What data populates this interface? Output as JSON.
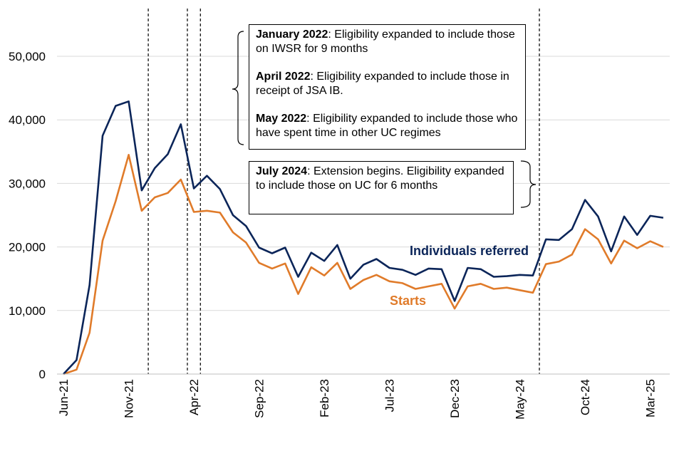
{
  "chart_data": {
    "type": "line",
    "y_ticks": [
      "0",
      "10,000",
      "20,000",
      "30,000",
      "40,000",
      "50,000"
    ],
    "ylim": [
      0,
      55000
    ],
    "x_tick_labels": [
      "Jun-21",
      "Nov-21",
      "Apr-22",
      "Sep-22",
      "Feb-23",
      "Jul-23",
      "Dec-23",
      "May-24",
      "Oct-24",
      "Mar-25"
    ],
    "x": [
      "Jun-21",
      "Jul-21",
      "Aug-21",
      "Sep-21",
      "Oct-21",
      "Nov-21",
      "Dec-21",
      "Jan-22",
      "Feb-22",
      "Mar-22",
      "Apr-22",
      "May-22",
      "Jun-22",
      "Jul-22",
      "Aug-22",
      "Sep-22",
      "Oct-22",
      "Nov-22",
      "Dec-22",
      "Jan-23",
      "Feb-23",
      "Mar-23",
      "Apr-23",
      "May-23",
      "Jun-23",
      "Jul-23",
      "Aug-23",
      "Sep-23",
      "Oct-23",
      "Nov-23",
      "Dec-23",
      "Jan-24",
      "Feb-24",
      "Mar-24",
      "Apr-24",
      "May-24",
      "Jun-24",
      "Jul-24",
      "Aug-24",
      "Sep-24",
      "Oct-24",
      "Nov-24",
      "Dec-24",
      "Jan-25",
      "Feb-25",
      "Mar-25",
      "Apr-25"
    ],
    "series": [
      {
        "name": "Individuals referred",
        "color": "#0b2559",
        "values": [
          0,
          2200,
          14000,
          37500,
          42200,
          42900,
          28900,
          32400,
          34600,
          39300,
          29200,
          31200,
          29100,
          25000,
          23300,
          19900,
          19000,
          19900,
          15300,
          19100,
          17800,
          20300,
          15000,
          17200,
          18100,
          16700,
          16400,
          15600,
          16600,
          16500,
          11500,
          16700,
          16500,
          15300,
          15400,
          15600,
          15500,
          21200,
          21100,
          22800,
          27400,
          24800,
          19300,
          24800,
          21900,
          24900,
          24600
        ]
      },
      {
        "name": "Starts",
        "color": "#e07b2a",
        "values": [
          0,
          700,
          6500,
          21000,
          27200,
          34500,
          25700,
          27800,
          28500,
          30600,
          25500,
          25700,
          25400,
          22300,
          20700,
          17500,
          16600,
          17400,
          12600,
          16800,
          15500,
          17500,
          13400,
          14800,
          15600,
          14600,
          14300,
          13400,
          13800,
          14200,
          10300,
          13800,
          14200,
          13400,
          13600,
          13200,
          12800,
          17300,
          17700,
          18800,
          22800,
          21200,
          17400,
          21000,
          19800,
          20900,
          20000
        ]
      }
    ],
    "event_lines": [
      "Jan-22",
      "Apr-22",
      "May-22",
      "Jul-24"
    ],
    "grid": true,
    "legend": "inline labels"
  },
  "annotations": {
    "box1": {
      "jan_bold": "January 2022",
      "jan_text": ": Eligibility expanded to include those on IWSR for 9 months",
      "apr_bold": "April 2022",
      "apr_text": ": Eligibility expanded to include those in receipt of JSA IB.",
      "may_bold": "May 2022",
      "may_text": ": Eligibility expanded to include those who have spent time in other UC regimes"
    },
    "box2": {
      "jul_bold": "July 2024",
      "jul_text": ": Extension begins. Eligibility expanded to include those on UC for 6 months"
    }
  }
}
